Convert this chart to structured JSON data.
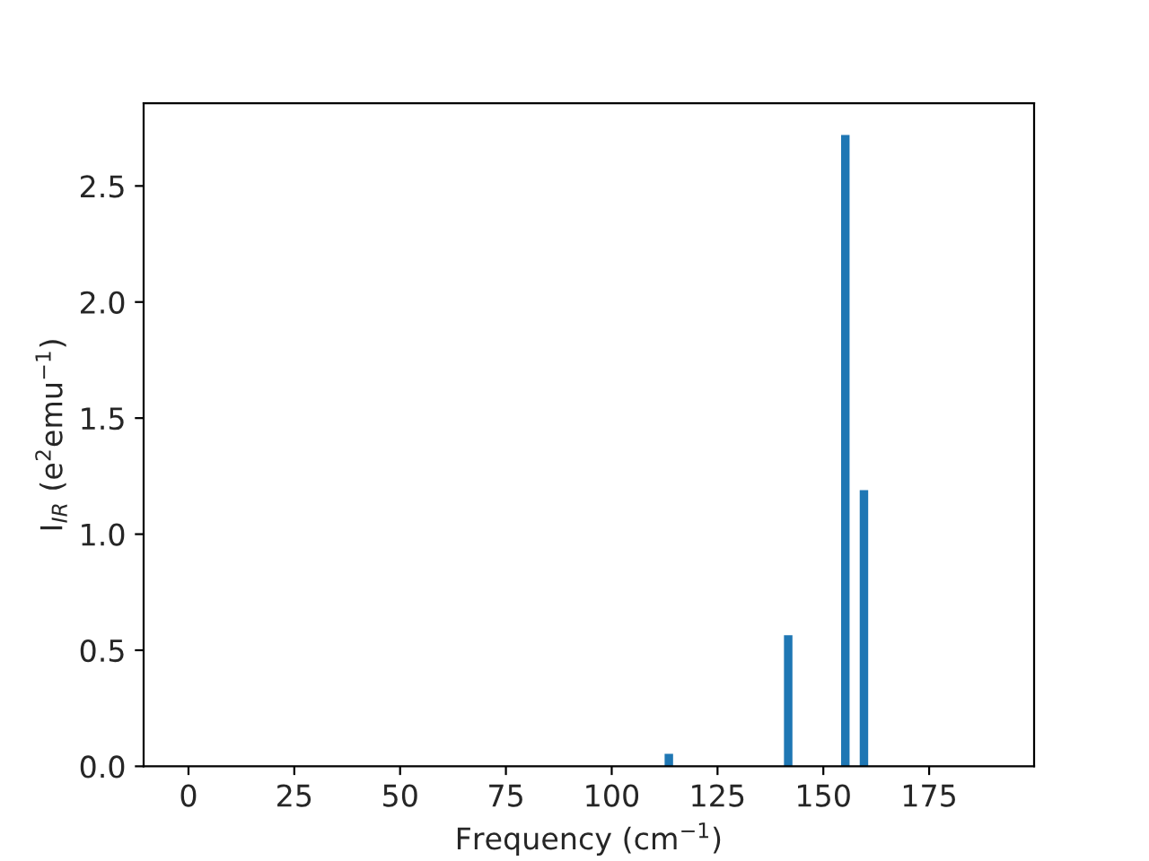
{
  "chart_data": {
    "type": "bar",
    "xlabel": "Frequency (cm$^{−1}$)",
    "ylabel": "I$_{IR}$ (e$^{2}$emu$^{−1}$)",
    "x": [
      113.5,
      141.7,
      155.2,
      159.6
    ],
    "values": [
      0.054,
      0.565,
      2.72,
      1.19
    ],
    "color": "#1f77b4",
    "xlim": [
      -10.6,
      199.8
    ],
    "xticks": [
      0,
      25,
      50,
      75,
      100,
      125,
      150,
      175
    ],
    "ylim": [
      0,
      2.856
    ],
    "yticks": [
      {
        "value": 0,
        "label": "0.0"
      },
      0.5,
      {
        "value": 1,
        "label": "1.0"
      },
      1.5,
      {
        "value": 2,
        "label": "2.0"
      },
      2.5
    ],
    "grid": false
  }
}
